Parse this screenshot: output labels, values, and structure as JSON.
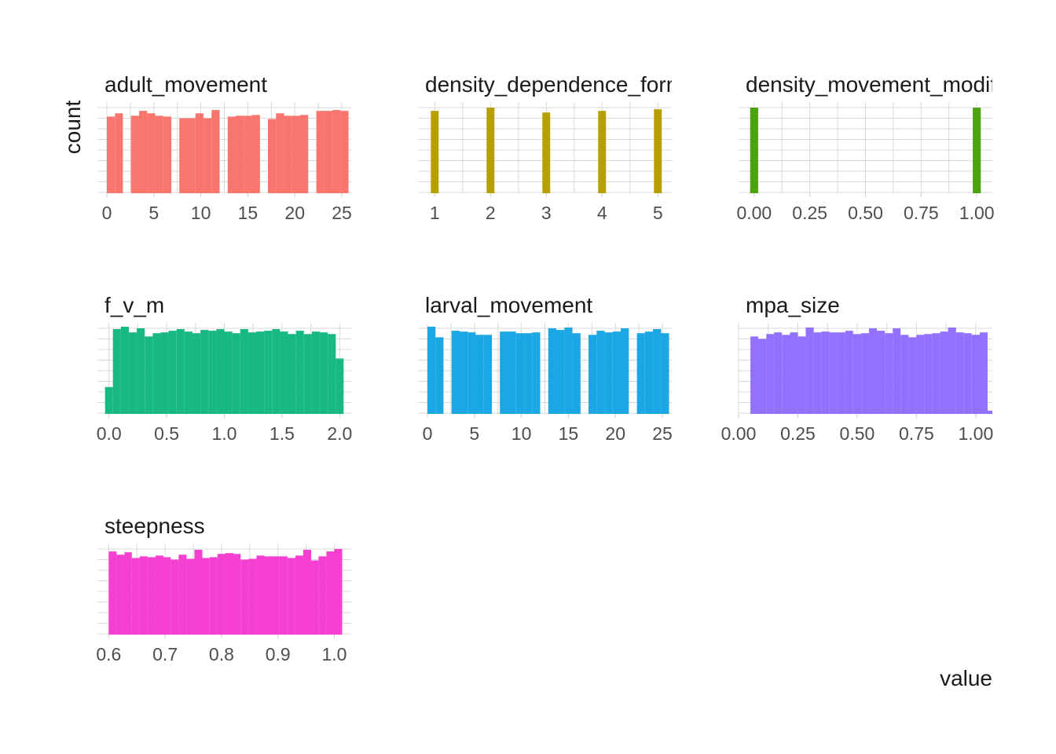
{
  "chart_data": {
    "type": "bar",
    "ylabel": "count",
    "xlabel": "value",
    "facet_scales": "free",
    "grid": true,
    "panels": [
      {
        "title": "adult_movement",
        "color": "#F8766D",
        "xlim": [
          -1,
          26
        ],
        "ylim": [
          0,
          104
        ],
        "xticks": [
          0,
          5,
          10,
          15,
          20,
          25
        ],
        "xtick_labels": [
          "0",
          "5",
          "10",
          "15",
          "20",
          "25"
        ],
        "bins": [
          {
            "x0": 0.0,
            "x1": 0.86,
            "y": 93
          },
          {
            "x0": 0.86,
            "x1": 1.71,
            "y": 97
          },
          {
            "x0": 2.57,
            "x1": 3.43,
            "y": 94
          },
          {
            "x0": 3.43,
            "x1": 4.29,
            "y": 100
          },
          {
            "x0": 4.29,
            "x1": 5.14,
            "y": 97
          },
          {
            "x0": 5.14,
            "x1": 6.0,
            "y": 94
          },
          {
            "x0": 6.0,
            "x1": 6.86,
            "y": 93
          },
          {
            "x0": 7.71,
            "x1": 8.57,
            "y": 91
          },
          {
            "x0": 8.57,
            "x1": 9.43,
            "y": 91
          },
          {
            "x0": 9.43,
            "x1": 10.29,
            "y": 97
          },
          {
            "x0": 10.29,
            "x1": 11.14,
            "y": 91
          },
          {
            "x0": 11.14,
            "x1": 12.0,
            "y": 101
          },
          {
            "x0": 12.86,
            "x1": 13.71,
            "y": 93
          },
          {
            "x0": 13.71,
            "x1": 14.57,
            "y": 94
          },
          {
            "x0": 14.57,
            "x1": 15.43,
            "y": 94
          },
          {
            "x0": 15.43,
            "x1": 16.29,
            "y": 95
          },
          {
            "x0": 17.14,
            "x1": 18.0,
            "y": 90
          },
          {
            "x0": 18.0,
            "x1": 18.86,
            "y": 97
          },
          {
            "x0": 18.86,
            "x1": 19.71,
            "y": 94
          },
          {
            "x0": 19.71,
            "x1": 20.57,
            "y": 94
          },
          {
            "x0": 20.57,
            "x1": 21.43,
            "y": 95
          },
          {
            "x0": 22.29,
            "x1": 23.14,
            "y": 100
          },
          {
            "x0": 23.14,
            "x1": 24.0,
            "y": 100
          },
          {
            "x0": 24.0,
            "x1": 24.86,
            "y": 101
          },
          {
            "x0": 24.86,
            "x1": 25.71,
            "y": 100
          }
        ]
      },
      {
        "title": "density_dependence_form",
        "color": "#B79F00",
        "xlim": [
          0.7,
          5.25
        ],
        "ylim": [
          0,
          104
        ],
        "xticks": [
          1,
          2,
          3,
          4,
          5
        ],
        "xtick_labels": [
          "1",
          "2",
          "3",
          "4",
          "5"
        ],
        "bins": [
          {
            "x0": 0.93,
            "x1": 1.07,
            "y": 100
          },
          {
            "x0": 1.93,
            "x1": 2.07,
            "y": 104
          },
          {
            "x0": 2.93,
            "x1": 3.07,
            "y": 98
          },
          {
            "x0": 3.93,
            "x1": 4.07,
            "y": 100
          },
          {
            "x0": 4.93,
            "x1": 5.07,
            "y": 102
          }
        ]
      },
      {
        "title": "density_movement_modifie",
        "color": "#4CA40C",
        "xlim": [
          -0.07,
          1.07
        ],
        "ylim": [
          0,
          104
        ],
        "xticks": [
          0.0,
          0.25,
          0.5,
          0.75,
          1.0
        ],
        "xtick_labels": [
          "0.00",
          "0.25",
          "0.50",
          "0.75",
          "1.00"
        ],
        "bins": [
          {
            "x0": -0.018,
            "x1": 0.018,
            "y": 104
          },
          {
            "x0": 0.982,
            "x1": 1.018,
            "y": 104
          }
        ]
      },
      {
        "title": "f_v_m",
        "color": "#18B884",
        "xlim": [
          -0.1,
          2.1
        ],
        "ylim": [
          0,
          104
        ],
        "xticks": [
          0.0,
          0.5,
          1.0,
          1.5,
          2.0
        ],
        "xtick_labels": [
          "0.0",
          "0.5",
          "1.0",
          "1.5",
          "2.0"
        ],
        "bins": [
          {
            "x0": -0.034,
            "x1": 0.034,
            "y": 32
          },
          {
            "x0": 0.034,
            "x1": 0.103,
            "y": 103
          },
          {
            "x0": 0.103,
            "x1": 0.172,
            "y": 106
          },
          {
            "x0": 0.172,
            "x1": 0.241,
            "y": 99
          },
          {
            "x0": 0.241,
            "x1": 0.31,
            "y": 104
          },
          {
            "x0": 0.31,
            "x1": 0.379,
            "y": 94
          },
          {
            "x0": 0.379,
            "x1": 0.448,
            "y": 98
          },
          {
            "x0": 0.448,
            "x1": 0.517,
            "y": 99
          },
          {
            "x0": 0.517,
            "x1": 0.586,
            "y": 101
          },
          {
            "x0": 0.586,
            "x1": 0.655,
            "y": 103
          },
          {
            "x0": 0.655,
            "x1": 0.724,
            "y": 100
          },
          {
            "x0": 0.724,
            "x1": 0.793,
            "y": 98
          },
          {
            "x0": 0.793,
            "x1": 0.862,
            "y": 102
          },
          {
            "x0": 0.862,
            "x1": 0.931,
            "y": 101
          },
          {
            "x0": 0.931,
            "x1": 1.0,
            "y": 103
          },
          {
            "x0": 1.0,
            "x1": 1.069,
            "y": 100
          },
          {
            "x0": 1.069,
            "x1": 1.138,
            "y": 98
          },
          {
            "x0": 1.138,
            "x1": 1.207,
            "y": 103
          },
          {
            "x0": 1.207,
            "x1": 1.276,
            "y": 99
          },
          {
            "x0": 1.276,
            "x1": 1.345,
            "y": 100
          },
          {
            "x0": 1.345,
            "x1": 1.414,
            "y": 101
          },
          {
            "x0": 1.414,
            "x1": 1.483,
            "y": 103
          },
          {
            "x0": 1.483,
            "x1": 1.552,
            "y": 100
          },
          {
            "x0": 1.552,
            "x1": 1.621,
            "y": 97
          },
          {
            "x0": 1.621,
            "x1": 1.69,
            "y": 101
          },
          {
            "x0": 1.69,
            "x1": 1.759,
            "y": 97
          },
          {
            "x0": 1.759,
            "x1": 1.828,
            "y": 100
          },
          {
            "x0": 1.828,
            "x1": 1.897,
            "y": 99
          },
          {
            "x0": 1.897,
            "x1": 1.966,
            "y": 97
          },
          {
            "x0": 1.966,
            "x1": 2.034,
            "y": 67
          }
        ]
      },
      {
        "title": "larval_movement",
        "color": "#1AA7E3",
        "xlim": [
          -1,
          26
        ],
        "ylim": [
          0,
          104
        ],
        "xticks": [
          0,
          5,
          10,
          15,
          20,
          25
        ],
        "xtick_labels": [
          "0",
          "5",
          "10",
          "15",
          "20",
          "25"
        ],
        "bins": [
          {
            "x0": 0.0,
            "x1": 0.86,
            "y": 106
          },
          {
            "x0": 0.86,
            "x1": 1.71,
            "y": 93
          },
          {
            "x0": 2.57,
            "x1": 3.43,
            "y": 101
          },
          {
            "x0": 3.43,
            "x1": 4.29,
            "y": 100
          },
          {
            "x0": 4.29,
            "x1": 5.14,
            "y": 99
          },
          {
            "x0": 5.14,
            "x1": 6.0,
            "y": 96
          },
          {
            "x0": 6.0,
            "x1": 6.86,
            "y": 96
          },
          {
            "x0": 7.71,
            "x1": 8.57,
            "y": 100
          },
          {
            "x0": 8.57,
            "x1": 9.43,
            "y": 100
          },
          {
            "x0": 9.43,
            "x1": 10.29,
            "y": 98
          },
          {
            "x0": 10.29,
            "x1": 11.14,
            "y": 98
          },
          {
            "x0": 11.14,
            "x1": 12.0,
            "y": 99
          },
          {
            "x0": 12.86,
            "x1": 13.71,
            "y": 104
          },
          {
            "x0": 13.71,
            "x1": 14.57,
            "y": 102
          },
          {
            "x0": 14.57,
            "x1": 15.43,
            "y": 105
          },
          {
            "x0": 15.43,
            "x1": 16.29,
            "y": 98
          },
          {
            "x0": 17.14,
            "x1": 18.0,
            "y": 96
          },
          {
            "x0": 18.0,
            "x1": 18.86,
            "y": 101
          },
          {
            "x0": 18.86,
            "x1": 19.71,
            "y": 99
          },
          {
            "x0": 19.71,
            "x1": 20.57,
            "y": 100
          },
          {
            "x0": 20.57,
            "x1": 21.43,
            "y": 104
          },
          {
            "x0": 22.29,
            "x1": 23.14,
            "y": 98
          },
          {
            "x0": 23.14,
            "x1": 24.0,
            "y": 100
          },
          {
            "x0": 24.0,
            "x1": 24.86,
            "y": 103
          },
          {
            "x0": 24.86,
            "x1": 25.71,
            "y": 98
          }
        ]
      },
      {
        "title": "mpa_size",
        "color": "#9470FF",
        "xlim": [
          0.0,
          1.07
        ],
        "ylim": [
          0,
          104
        ],
        "xticks": [
          0.0,
          0.25,
          0.5,
          0.75,
          1.0
        ],
        "xtick_labels": [
          "0.00",
          "0.25",
          "0.50",
          "0.75",
          "1.00"
        ],
        "bins": [
          {
            "x0": 0.05,
            "x1": 0.083,
            "y": 94
          },
          {
            "x0": 0.083,
            "x1": 0.117,
            "y": 91
          },
          {
            "x0": 0.117,
            "x1": 0.15,
            "y": 97
          },
          {
            "x0": 0.15,
            "x1": 0.183,
            "y": 99
          },
          {
            "x0": 0.183,
            "x1": 0.217,
            "y": 96
          },
          {
            "x0": 0.217,
            "x1": 0.25,
            "y": 99
          },
          {
            "x0": 0.25,
            "x1": 0.283,
            "y": 94
          },
          {
            "x0": 0.283,
            "x1": 0.317,
            "y": 105
          },
          {
            "x0": 0.317,
            "x1": 0.35,
            "y": 99
          },
          {
            "x0": 0.35,
            "x1": 0.383,
            "y": 100
          },
          {
            "x0": 0.383,
            "x1": 0.417,
            "y": 99
          },
          {
            "x0": 0.417,
            "x1": 0.45,
            "y": 99
          },
          {
            "x0": 0.45,
            "x1": 0.483,
            "y": 101
          },
          {
            "x0": 0.483,
            "x1": 0.517,
            "y": 97
          },
          {
            "x0": 0.517,
            "x1": 0.55,
            "y": 98
          },
          {
            "x0": 0.55,
            "x1": 0.583,
            "y": 104
          },
          {
            "x0": 0.583,
            "x1": 0.617,
            "y": 101
          },
          {
            "x0": 0.617,
            "x1": 0.65,
            "y": 98
          },
          {
            "x0": 0.65,
            "x1": 0.683,
            "y": 104
          },
          {
            "x0": 0.683,
            "x1": 0.717,
            "y": 96
          },
          {
            "x0": 0.717,
            "x1": 0.75,
            "y": 93
          },
          {
            "x0": 0.75,
            "x1": 0.783,
            "y": 96
          },
          {
            "x0": 0.783,
            "x1": 0.817,
            "y": 97
          },
          {
            "x0": 0.817,
            "x1": 0.85,
            "y": 98
          },
          {
            "x0": 0.85,
            "x1": 0.883,
            "y": 100
          },
          {
            "x0": 0.883,
            "x1": 0.917,
            "y": 105
          },
          {
            "x0": 0.917,
            "x1": 0.95,
            "y": 99
          },
          {
            "x0": 0.95,
            "x1": 0.983,
            "y": 98
          },
          {
            "x0": 0.983,
            "x1": 1.017,
            "y": 96
          },
          {
            "x0": 1.017,
            "x1": 1.05,
            "y": 99
          },
          {
            "x0": 1.05,
            "x1": 1.083,
            "y": 3
          }
        ]
      },
      {
        "title": "steepness",
        "color": "#F53FD1",
        "xlim": [
          0.58,
          1.03
        ],
        "ylim": [
          0,
          104
        ],
        "xticks": [
          0.6,
          0.7,
          0.8,
          0.9,
          1.0
        ],
        "xtick_labels": [
          "0.6",
          "0.7",
          "0.8",
          "0.9",
          "1.0"
        ],
        "bins": [
          {
            "x0": 0.6,
            "x1": 0.614,
            "y": 101
          },
          {
            "x0": 0.614,
            "x1": 0.628,
            "y": 97
          },
          {
            "x0": 0.628,
            "x1": 0.641,
            "y": 100
          },
          {
            "x0": 0.641,
            "x1": 0.655,
            "y": 93
          },
          {
            "x0": 0.655,
            "x1": 0.669,
            "y": 95
          },
          {
            "x0": 0.669,
            "x1": 0.683,
            "y": 94
          },
          {
            "x0": 0.683,
            "x1": 0.697,
            "y": 96
          },
          {
            "x0": 0.697,
            "x1": 0.71,
            "y": 94
          },
          {
            "x0": 0.71,
            "x1": 0.724,
            "y": 91
          },
          {
            "x0": 0.724,
            "x1": 0.738,
            "y": 97
          },
          {
            "x0": 0.738,
            "x1": 0.752,
            "y": 92
          },
          {
            "x0": 0.752,
            "x1": 0.766,
            "y": 103
          },
          {
            "x0": 0.766,
            "x1": 0.779,
            "y": 93
          },
          {
            "x0": 0.779,
            "x1": 0.793,
            "y": 94
          },
          {
            "x0": 0.793,
            "x1": 0.807,
            "y": 98
          },
          {
            "x0": 0.807,
            "x1": 0.821,
            "y": 99
          },
          {
            "x0": 0.821,
            "x1": 0.834,
            "y": 98
          },
          {
            "x0": 0.834,
            "x1": 0.848,
            "y": 91
          },
          {
            "x0": 0.848,
            "x1": 0.862,
            "y": 92
          },
          {
            "x0": 0.862,
            "x1": 0.876,
            "y": 96
          },
          {
            "x0": 0.876,
            "x1": 0.89,
            "y": 95
          },
          {
            "x0": 0.89,
            "x1": 0.903,
            "y": 95
          },
          {
            "x0": 0.903,
            "x1": 0.917,
            "y": 95
          },
          {
            "x0": 0.917,
            "x1": 0.931,
            "y": 93
          },
          {
            "x0": 0.931,
            "x1": 0.945,
            "y": 96
          },
          {
            "x0": 0.945,
            "x1": 0.959,
            "y": 103
          },
          {
            "x0": 0.959,
            "x1": 0.972,
            "y": 90
          },
          {
            "x0": 0.972,
            "x1": 0.986,
            "y": 95
          },
          {
            "x0": 0.986,
            "x1": 1.0,
            "y": 101
          },
          {
            "x0": 1.0,
            "x1": 1.014,
            "y": 104
          }
        ]
      }
    ]
  }
}
